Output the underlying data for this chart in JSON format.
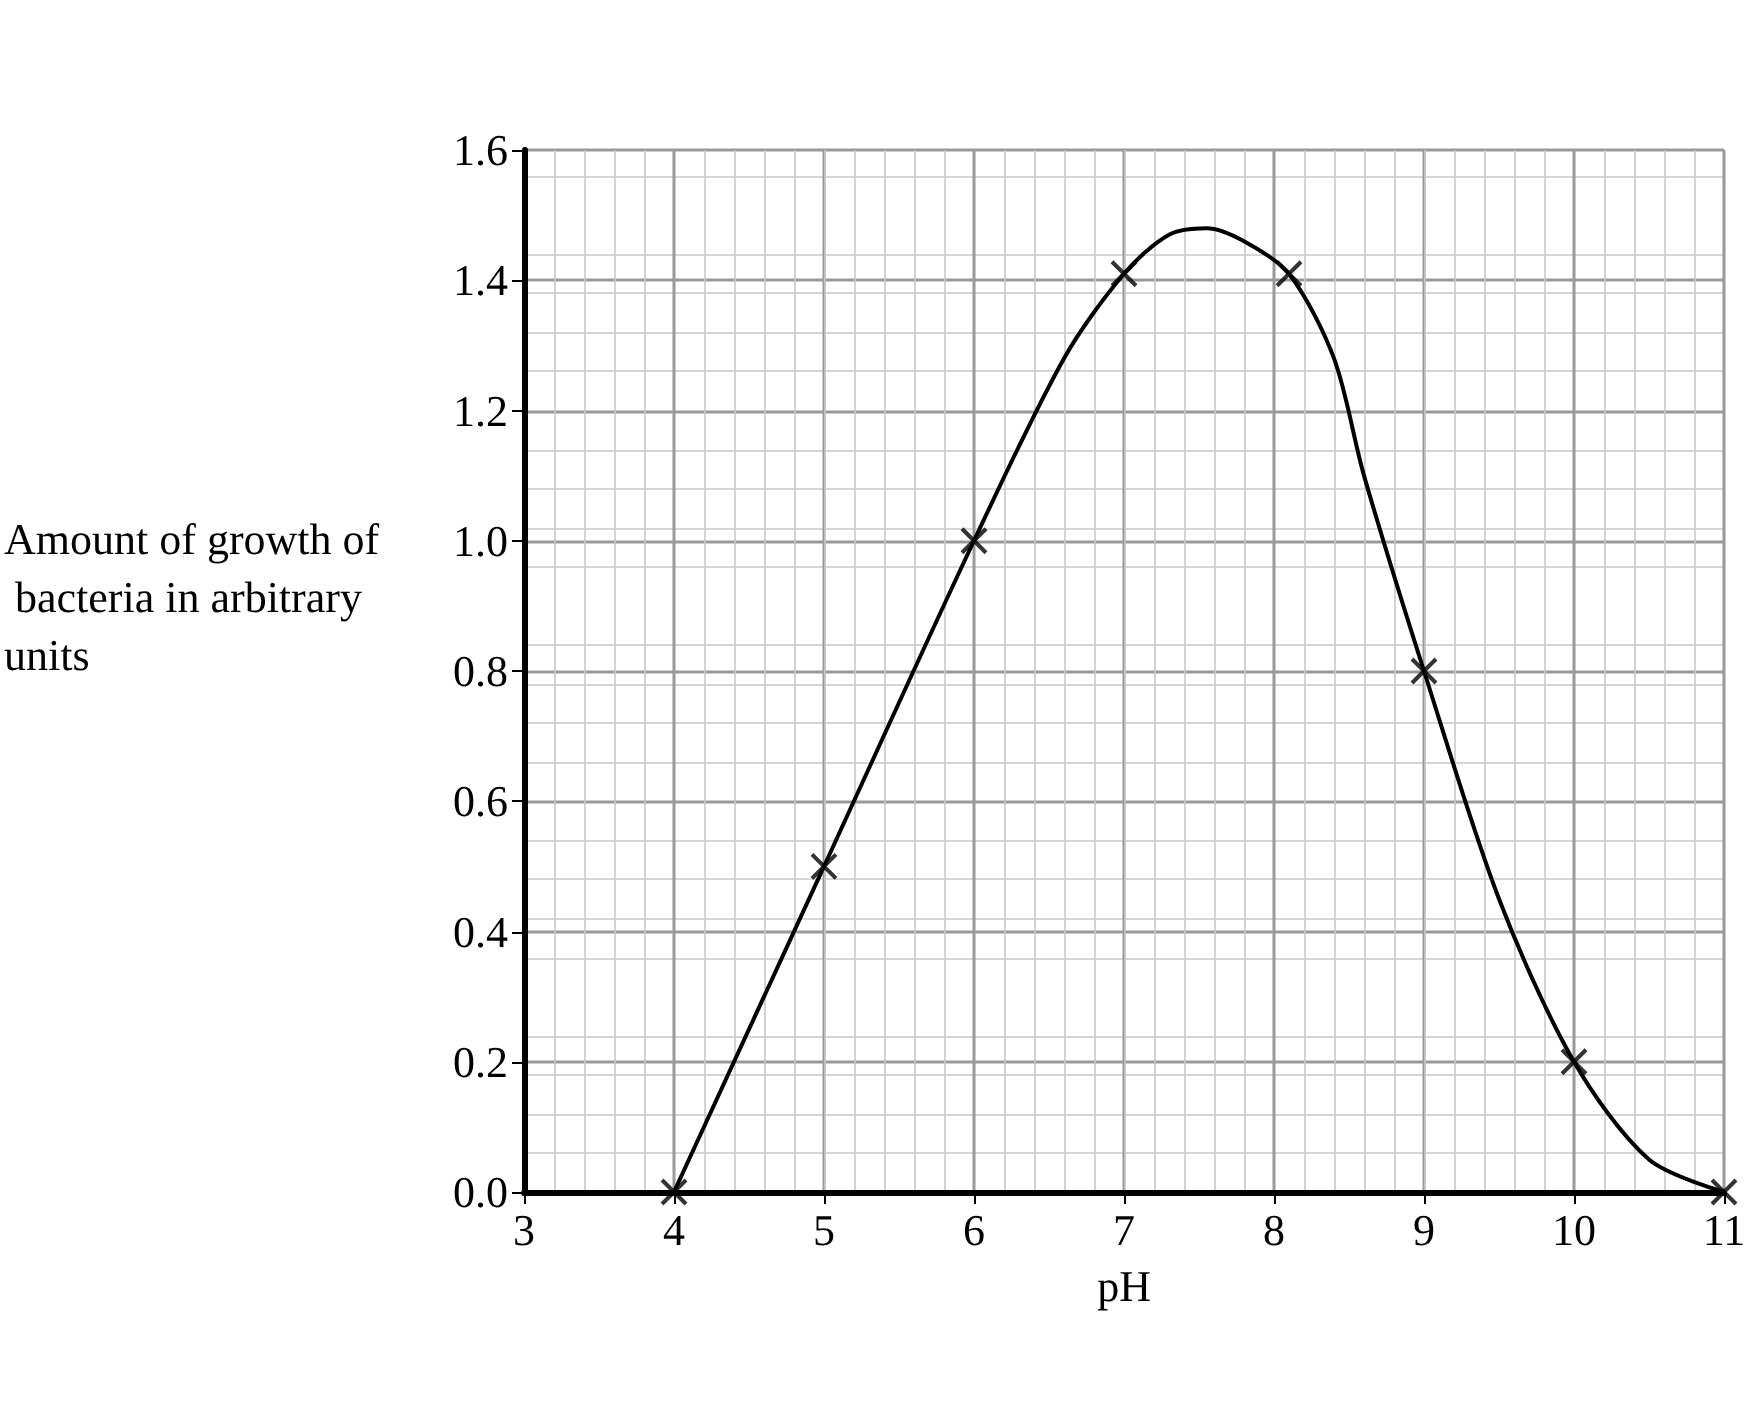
{
  "chart_data": {
    "type": "scatter",
    "xlabel": "pH",
    "ylabel": "Amount of growth of bacteria in arbitrary units",
    "xlim": [
      3,
      11
    ],
    "xticks": [
      3,
      4,
      5,
      6,
      7,
      8,
      9,
      10,
      11
    ],
    "ylim": [
      0,
      1.6
    ],
    "yticks": [
      {
        "value": 0,
        "label": "0.0"
      },
      {
        "value": 0.2,
        "label": "0.2"
      },
      {
        "value": 0.4,
        "label": "0.4"
      },
      {
        "value": 0.6,
        "label": "0.6"
      },
      {
        "value": 0.8,
        "label": "0.8"
      },
      {
        "value": 1,
        "label": "1.0"
      },
      {
        "value": 1.2,
        "label": "1.2"
      },
      {
        "value": 1.4,
        "label": "1.4"
      },
      {
        "value": 1.6,
        "label": "1.6"
      }
    ],
    "grid": true,
    "series": [
      {
        "color": "#000000",
        "marker": "cross",
        "x": [
          4,
          5,
          6,
          7,
          8.1,
          9,
          10,
          11
        ],
        "values": [
          0,
          0.5,
          1.0,
          1.41,
          1.41,
          0.8,
          0.2,
          0
        ]
      },
      {
        "type": "line",
        "color": "#000000",
        "marker": "none",
        "line_style": "solid",
        "x": [
          4,
          5,
          6,
          6.6,
          7,
          7.3,
          7.55,
          7.8,
          8.1,
          8.4,
          8.6,
          9,
          9.5,
          10,
          10.5,
          11
        ],
        "values": [
          0,
          0.5,
          1.0,
          1.28,
          1.41,
          1.47,
          1.48,
          1.46,
          1.41,
          1.28,
          1.1,
          0.8,
          0.45,
          0.2,
          0.05,
          0
        ]
      }
    ]
  }
}
